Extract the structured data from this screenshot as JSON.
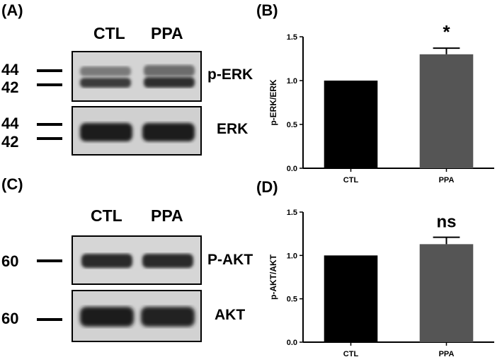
{
  "panels": {
    "a": "(A)",
    "b": "(B)",
    "c": "(C)",
    "d": "(D)"
  },
  "blots_top": {
    "lanes": [
      "CTL",
      "PPA"
    ],
    "markers_1": [
      "44",
      "42"
    ],
    "markers_2": [
      "44",
      "42"
    ],
    "proteins": [
      "p-ERK",
      "ERK"
    ]
  },
  "blots_bottom": {
    "lanes": [
      "CTL",
      "PPA"
    ],
    "markers": [
      "60",
      "60"
    ],
    "proteins": [
      "P-AKT",
      "AKT"
    ]
  },
  "chart_data": [
    {
      "type": "bar",
      "panel": "(B)",
      "categories": [
        "CTL",
        "PPA"
      ],
      "values": [
        1.0,
        1.3
      ],
      "errors": [
        0,
        0.07
      ],
      "ylabel": "p-ERK/ERK",
      "ylim": [
        0,
        1.5
      ],
      "yticks": [
        "0.0",
        "0.5",
        "1.0",
        "1.5"
      ],
      "significance": "*",
      "colors": [
        "#000000",
        "#555555"
      ]
    },
    {
      "type": "bar",
      "panel": "(D)",
      "categories": [
        "CTL",
        "PPA"
      ],
      "values": [
        1.0,
        1.13
      ],
      "errors": [
        0,
        0.08
      ],
      "ylabel": "p-AKT/AKT",
      "ylim": [
        0,
        1.5
      ],
      "yticks": [
        "0.0",
        "0.5",
        "1.0",
        "1.5"
      ],
      "significance": "ns",
      "colors": [
        "#000000",
        "#555555"
      ]
    }
  ]
}
